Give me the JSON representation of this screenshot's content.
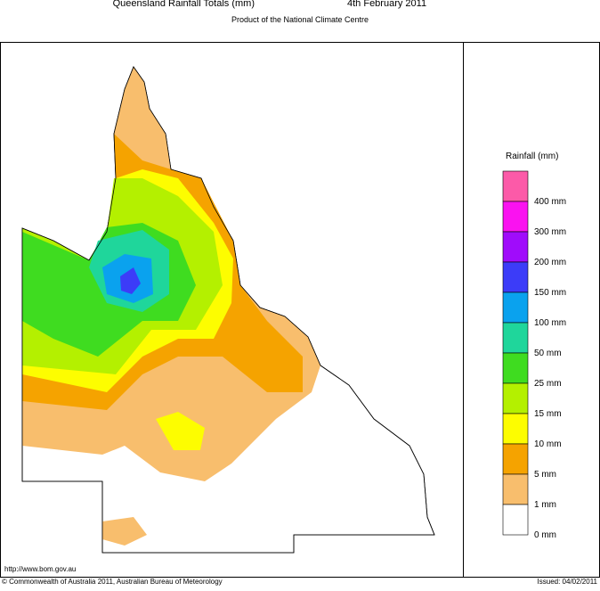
{
  "header": {
    "title": "Queensland Rainfall Totals (mm)",
    "date": "4th February 2011",
    "subtitle": "Product of the National Climate Centre"
  },
  "legend": {
    "title": "Rainfall (mm)",
    "items": [
      {
        "label": "400 mm",
        "color": "#fc5aa8"
      },
      {
        "label": "300 mm",
        "color": "#fa12f0"
      },
      {
        "label": "200 mm",
        "color": "#a00cfb"
      },
      {
        "label": "150 mm",
        "color": "#3c3cf8"
      },
      {
        "label": "100 mm",
        "color": "#0aa2ee"
      },
      {
        "label": "50 mm",
        "color": "#1fd69b"
      },
      {
        "label": "25 mm",
        "color": "#3fdc20"
      },
      {
        "label": "15 mm",
        "color": "#b4f000"
      },
      {
        "label": "10 mm",
        "color": "#fdfd00"
      },
      {
        "label": "5 mm",
        "color": "#f5a300"
      },
      {
        "label": "1 mm",
        "color": "#f8be6d"
      },
      {
        "label": "0 mm",
        "color": "#ffffff"
      }
    ]
  },
  "footer": {
    "url": "http://www.bom.gov.au",
    "copyright": "© Commonwealth of Australia 2011, Australian Bureau of Meteorology",
    "issued": "Issued: 04/02/2011"
  }
}
